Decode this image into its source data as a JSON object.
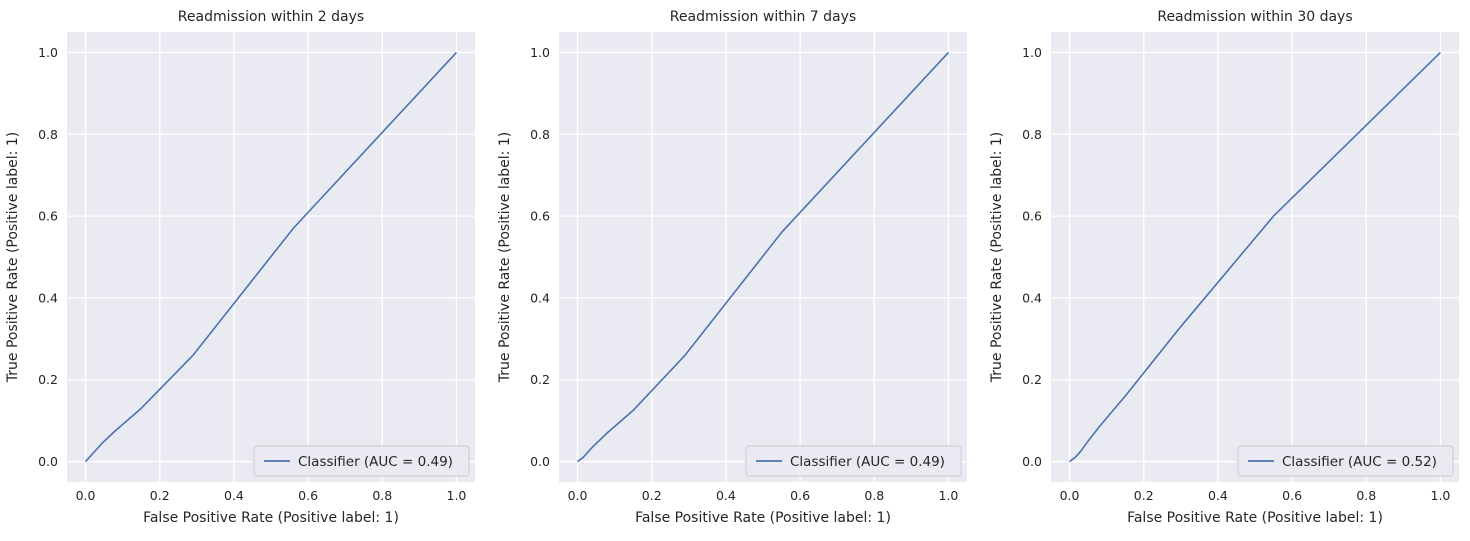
{
  "chart_data": [
    {
      "type": "line",
      "title": "Readmission within 2 days",
      "xlabel": "False Positive Rate (Positive label: 1)",
      "ylabel": "True Positive Rate (Positive label: 1)",
      "xlim": [
        -0.05,
        1.05
      ],
      "ylim": [
        -0.05,
        1.05
      ],
      "xticks": [
        "0.0",
        "0.2",
        "0.4",
        "0.6",
        "0.8",
        "1.0"
      ],
      "yticks": [
        "0.0",
        "0.2",
        "0.4",
        "0.6",
        "0.8",
        "1.0"
      ],
      "grid": true,
      "legend_position": "lower-right",
      "series": [
        {
          "name": "Classifier (AUC = 0.49)",
          "color": "#4c72b0",
          "x": [
            0.0,
            0.01,
            0.02,
            0.03,
            0.045,
            0.08,
            0.15,
            0.29,
            0.56,
            1.0
          ],
          "y": [
            0.0,
            0.01,
            0.02,
            0.03,
            0.045,
            0.075,
            0.13,
            0.26,
            0.57,
            1.0
          ]
        }
      ]
    },
    {
      "type": "line",
      "title": "Readmission within 7 days",
      "xlabel": "False Positive Rate (Positive label: 1)",
      "ylabel": "True Positive Rate (Positive label: 1)",
      "xlim": [
        -0.05,
        1.05
      ],
      "ylim": [
        -0.05,
        1.05
      ],
      "xticks": [
        "0.0",
        "0.2",
        "0.4",
        "0.6",
        "0.8",
        "1.0"
      ],
      "yticks": [
        "0.0",
        "0.2",
        "0.4",
        "0.6",
        "0.8",
        "1.0"
      ],
      "grid": true,
      "legend_position": "lower-right",
      "series": [
        {
          "name": "Classifier (AUC = 0.49)",
          "color": "#4c72b0",
          "x": [
            0.0,
            0.015,
            0.04,
            0.08,
            0.15,
            0.29,
            0.55,
            1.0
          ],
          "y": [
            0.0,
            0.01,
            0.035,
            0.07,
            0.125,
            0.26,
            0.56,
            1.0
          ]
        }
      ]
    },
    {
      "type": "line",
      "title": "Readmission within 30 days",
      "xlabel": "False Positive Rate (Positive label: 1)",
      "ylabel": "True Positive Rate (Positive label: 1)",
      "xlim": [
        -0.05,
        1.05
      ],
      "ylim": [
        -0.05,
        1.05
      ],
      "xticks": [
        "0.0",
        "0.2",
        "0.4",
        "0.6",
        "0.8",
        "1.0"
      ],
      "yticks": [
        "0.0",
        "0.2",
        "0.4",
        "0.6",
        "0.8",
        "1.0"
      ],
      "grid": true,
      "legend_position": "lower-right",
      "series": [
        {
          "name": "Classifier (AUC = 0.52)",
          "color": "#4c72b0",
          "x": [
            0.0,
            0.015,
            0.03,
            0.05,
            0.08,
            0.15,
            0.3,
            0.55,
            1.0
          ],
          "y": [
            0.0,
            0.01,
            0.025,
            0.05,
            0.085,
            0.16,
            0.33,
            0.6,
            1.0
          ]
        }
      ]
    }
  ]
}
